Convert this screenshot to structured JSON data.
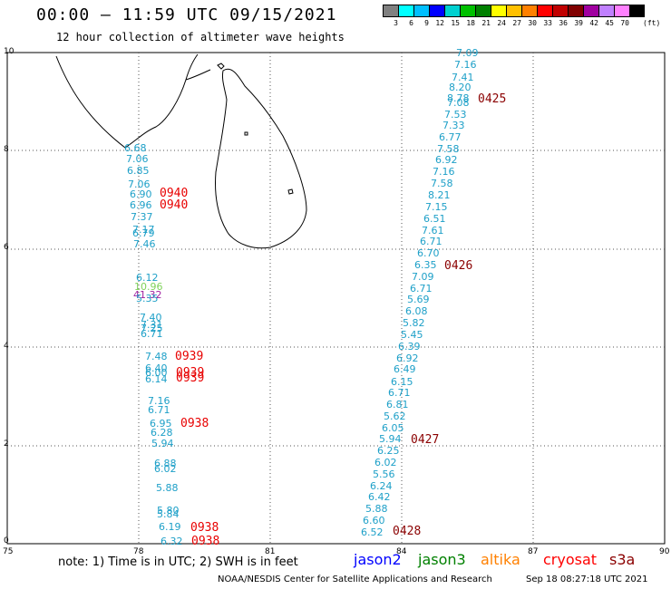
{
  "header": {
    "title": "00:00 – 11:59 UTC 09/15/2021",
    "subtitle": "12 hour collection of altimeter wave heights"
  },
  "colorbar": {
    "colors": [
      "#808080",
      "#00ffff",
      "#00bfff",
      "#0000ff",
      "#00d0d0",
      "#00c000",
      "#008000",
      "#ffff00",
      "#ffc000",
      "#ff8000",
      "#ff0000",
      "#c00000",
      "#800000",
      "#a000a0",
      "#c080ff",
      "#ff80ff",
      "#000000"
    ],
    "labels": [
      "3",
      "6",
      "9",
      "12",
      "15",
      "18",
      "21",
      "24",
      "27",
      "30",
      "33",
      "36",
      "39",
      "42",
      "45",
      "70"
    ],
    "units": "(ft)"
  },
  "axes": {
    "x_ticks": [
      "75",
      "78",
      "81",
      "84",
      "87",
      "90"
    ],
    "y_ticks": [
      "0",
      "2",
      "4",
      "6",
      "8",
      "10"
    ]
  },
  "track_west": {
    "values": [
      "6.68",
      "7.06",
      "6.85",
      "7.06",
      "6.90",
      "6.96",
      "7.37",
      "7.17",
      "6.79",
      "7.46",
      "6.12",
      "10.96",
      "41.32",
      "5.35",
      "7.40",
      "7.31",
      "7.25",
      "6.71",
      "7.48",
      "6.40",
      "6.00",
      "6.14",
      "7.16",
      "6.71",
      "6.95",
      "6.28",
      "5.94",
      "6.88",
      "6.02",
      "5.88",
      "5.80",
      "5.84",
      "6.19",
      "6.32"
    ],
    "times": [
      "0940",
      "0940",
      "0939",
      "0939",
      "0939",
      "0938",
      "0938",
      "0938"
    ]
  },
  "track_east": {
    "values": [
      "7.09",
      "7.16",
      "7.41",
      "8.20",
      "8.78",
      "7.08",
      "7.53",
      "7.33",
      "6.77",
      "7.58",
      "6.92",
      "7.16",
      "7.58",
      "8.21",
      "7.15",
      "6.51",
      "7.61",
      "6.71",
      "6.70",
      "6.35",
      "7.09",
      "6.71",
      "5.69",
      "6.08",
      "5.82",
      "5.45",
      "6.39",
      "6.92",
      "6.49",
      "6.15",
      "6.71",
      "6.81",
      "5.62",
      "6.05",
      "5.94",
      "6.25",
      "6.02",
      "5.56",
      "6.24",
      "6.42",
      "5.88",
      "6.60",
      "6.52"
    ],
    "times": [
      "0425",
      "0426",
      "0427",
      "0428"
    ]
  },
  "note": "note: 1) Time is in UTC; 2) SWH is in feet",
  "legend": [
    {
      "name": "jason2",
      "color": "#0000ff"
    },
    {
      "name": "jason3",
      "color": "#008000"
    },
    {
      "name": "altika",
      "color": "#ff8000"
    },
    {
      "name": "cryosat",
      "color": "#ff0000"
    },
    {
      "name": "s3a",
      "color": "#8b0000"
    }
  ],
  "footer": {
    "agency": "NOAA/NESDIS Center for Satellite Applications and Research",
    "timestamp": "Sep 18 08:27:18 UTC 2021"
  }
}
